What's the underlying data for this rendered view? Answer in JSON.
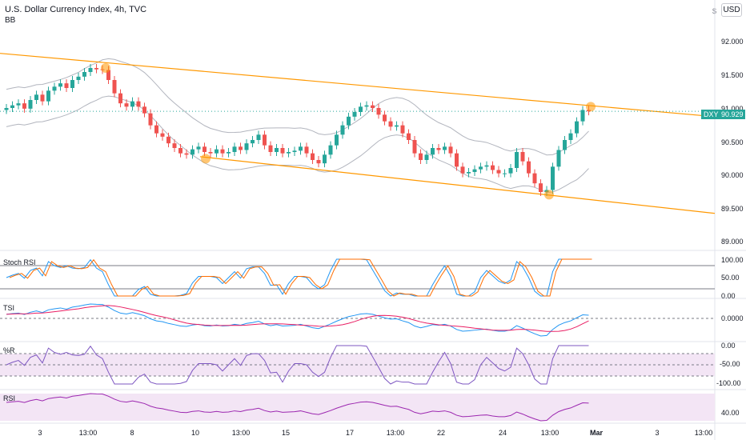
{
  "header": {
    "title": "U.S. Dollar Currency Index, 4h, TVC",
    "indicator": "BB",
    "currency": "USD"
  },
  "price_axis": {
    "labels": [
      "92.000",
      "91.500",
      "91.000",
      "90.500",
      "90.000",
      "89.500",
      "89.000"
    ],
    "last_symbol": "DXY",
    "last_price": "90.929"
  },
  "panes": {
    "stoch_rsi": {
      "label": "Stoch RSI",
      "labels": [
        "100.00",
        "50.00",
        "0.00"
      ]
    },
    "tsi": {
      "label": "TSI",
      "labels": [
        "0.0000"
      ]
    },
    "williams_r": {
      "label": "%R",
      "labels": [
        "0.00",
        "-50.00",
        "-100.00"
      ]
    },
    "rsi": {
      "label": "RSI",
      "labels": [
        "40.00"
      ]
    }
  },
  "time_axis": {
    "labels": [
      "3",
      "13:00",
      "8",
      "10",
      "13:00",
      "15",
      "17",
      "13:00",
      "22",
      "24",
      "13:00",
      "Mar",
      "3",
      "13:00"
    ]
  },
  "colors": {
    "up": "#26a69a",
    "down": "#ef5350",
    "channel": "#ff9800",
    "bands": "#b2b5be",
    "stoch_k": "#2196f3",
    "stoch_d": "#ff6d00",
    "tsi_main": "#2196f3",
    "tsi_signal": "#e91e63",
    "osc_line": "#7e57c2",
    "rsi_line": "#9c27b0",
    "osc_fill": "#f3e5f5"
  },
  "chart_data": {
    "type": "candlestick",
    "close": [
      90.98,
      91.02,
      91.05,
      90.97,
      91.1,
      91.18,
      91.08,
      91.24,
      91.3,
      91.35,
      91.28,
      91.4,
      91.45,
      91.52,
      91.58,
      91.56,
      91.55,
      91.4,
      91.2,
      91.05,
      91.0,
      91.08,
      91.0,
      90.9,
      90.72,
      90.6,
      90.55,
      90.45,
      90.38,
      90.3,
      90.28,
      90.36,
      90.4,
      90.32,
      90.3,
      90.36,
      90.3,
      90.32,
      90.4,
      90.35,
      90.45,
      90.5,
      90.58,
      90.42,
      90.32,
      90.38,
      90.3,
      90.32,
      90.34,
      90.4,
      90.3,
      90.2,
      90.15,
      90.28,
      90.42,
      90.58,
      90.72,
      90.85,
      90.92,
      91.0,
      91.02,
      90.98,
      90.88,
      90.78,
      90.7,
      90.72,
      90.6,
      90.5,
      90.3,
      90.2,
      90.28,
      90.38,
      90.35,
      90.4,
      90.3,
      90.1,
      90.0,
      90.02,
      90.06,
      90.1,
      90.12,
      90.05,
      90.0,
      90.0,
      90.08,
      90.32,
      90.18,
      90.0,
      89.85,
      89.72,
      89.75,
      90.1,
      90.35,
      90.5,
      90.6,
      90.78,
      90.95,
      90.93
    ],
    "channel_upper": {
      "from": 91.8,
      "to": 90.85
    },
    "channel_lower": {
      "from": 90.25,
      "to": 89.4
    },
    "touch_points": [
      91.58,
      90.22,
      91.0,
      89.68
    ],
    "stoch_rsi_range": [
      0,
      100
    ],
    "williams_r_range": [
      -100,
      0
    ]
  }
}
